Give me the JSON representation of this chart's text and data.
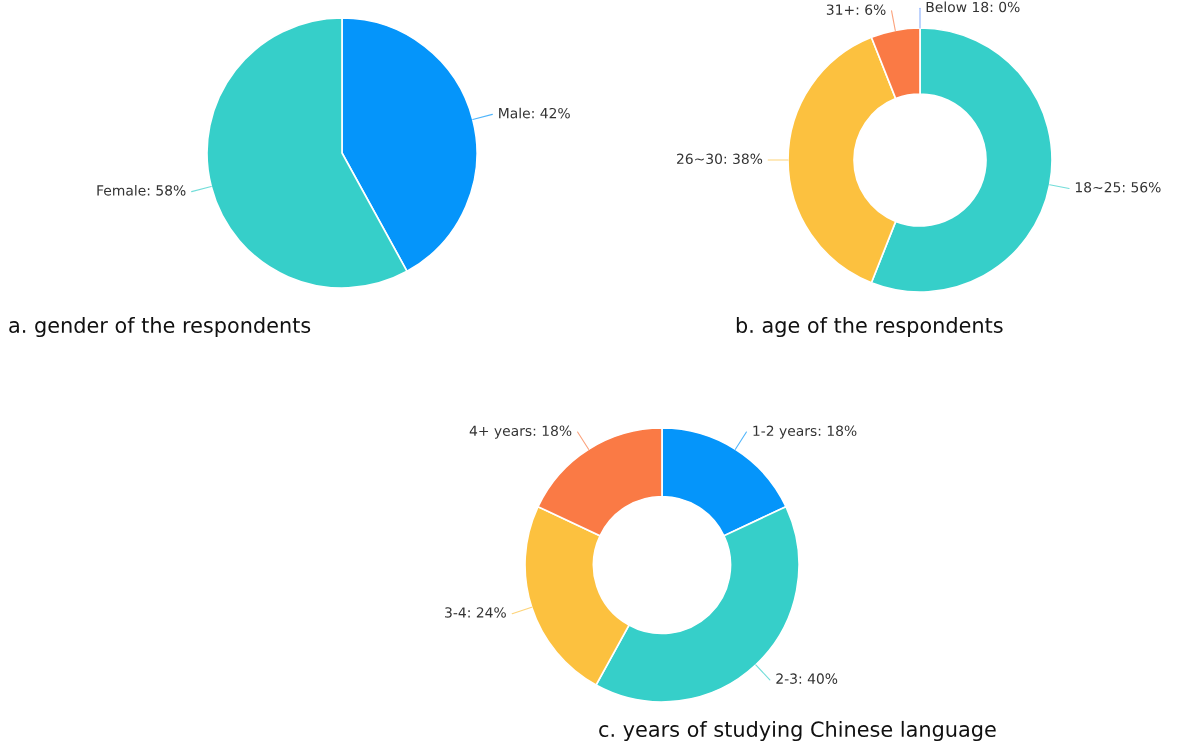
{
  "chart_data": [
    {
      "type": "pie",
      "title": "a. gender of the respondents",
      "categories": [
        "Male",
        "Female"
      ],
      "values": [
        42,
        58
      ],
      "colors": [
        "#0595fa",
        "#36cfc9"
      ],
      "value_labels": [
        ": 42%",
        ": 58%"
      ],
      "legend": false
    },
    {
      "type": "donut",
      "title": "b. age of the respondents",
      "categories": [
        "Below 18",
        "18~25",
        "26~30",
        "31+"
      ],
      "values": [
        0,
        56,
        38,
        6
      ],
      "colors": [
        "#5b8ff9",
        "#36cfc9",
        "#fcc13f",
        "#fa7a45"
      ],
      "value_labels": [
        ": 0%",
        ": 56%",
        ": 38%",
        ": 6%"
      ],
      "legend": false
    },
    {
      "type": "donut",
      "title": "c. years of studying Chinese language",
      "categories": [
        "1-2 years",
        "2-3",
        "3-4",
        "4+ years"
      ],
      "values": [
        18,
        40,
        24,
        18
      ],
      "colors": [
        "#0595fa",
        "#36cfc9",
        "#fcc13f",
        "#fa7a45"
      ],
      "value_labels": [
        ": 18%",
        ": 40%",
        ": 24%",
        ": 18%"
      ],
      "legend": false
    }
  ]
}
